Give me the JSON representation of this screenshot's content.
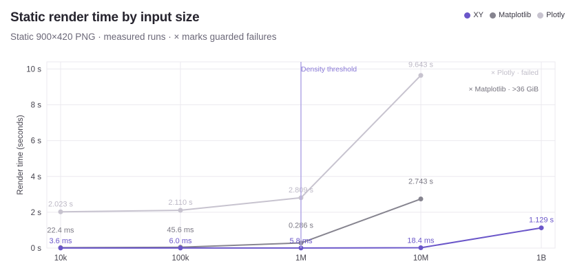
{
  "title": "Static render time by input size",
  "subtitle": "Static 900×420 PNG · measured runs · × marks guarded failures",
  "chart_data": {
    "type": "line",
    "title": "Static render time by input size",
    "subtitle": "Static 900×420 PNG · measured runs · × marks guarded failures",
    "xlabel": "",
    "ylabel": "Render time (seconds)",
    "x_scale": "log",
    "categories": [
      "10k",
      "100k",
      "1M",
      "10M",
      "1B"
    ],
    "x": [
      10000,
      100000,
      1000000,
      10000000,
      1000000000
    ],
    "ylim": [
      0,
      10.4
    ],
    "y_ticks": [
      0,
      2,
      4,
      6,
      8,
      10
    ],
    "y_tick_labels": [
      "0 s",
      "2 s",
      "4 s",
      "6 s",
      "8 s",
      "10 s"
    ],
    "grid": true,
    "legend_position": "top-right",
    "series": [
      {
        "name": "XY",
        "color": "#6a56c9",
        "values": [
          0.0036,
          0.006,
          0.0058,
          0.0184,
          1.129
        ],
        "labels": [
          "3.6 ms",
          "6.0 ms",
          "5.8 ms",
          "18.4 ms",
          "1.129 s"
        ]
      },
      {
        "name": "Matplotlib",
        "color": "#86848f",
        "values": [
          0.0224,
          0.0456,
          0.286,
          2.743,
          null
        ],
        "labels": [
          "22.4 ms",
          "45.6 ms",
          "0.286 s",
          "2.743 s",
          null
        ]
      },
      {
        "name": "Plotly",
        "color": "#c7c3cf",
        "values": [
          2.023,
          2.11,
          2.809,
          9.643,
          null
        ],
        "labels": [
          "2.023 s",
          "2.110 s",
          "2.809 s",
          "9.643 s",
          null
        ]
      }
    ],
    "annotations": [
      {
        "text": "Density threshold",
        "x": 1000000,
        "color": "#8878d6"
      },
      {
        "text": "× Plotly · failed",
        "color": "#c2bfca"
      },
      {
        "text": "× Matplotlib · >36 GiB",
        "color": "#74727d"
      }
    ]
  }
}
